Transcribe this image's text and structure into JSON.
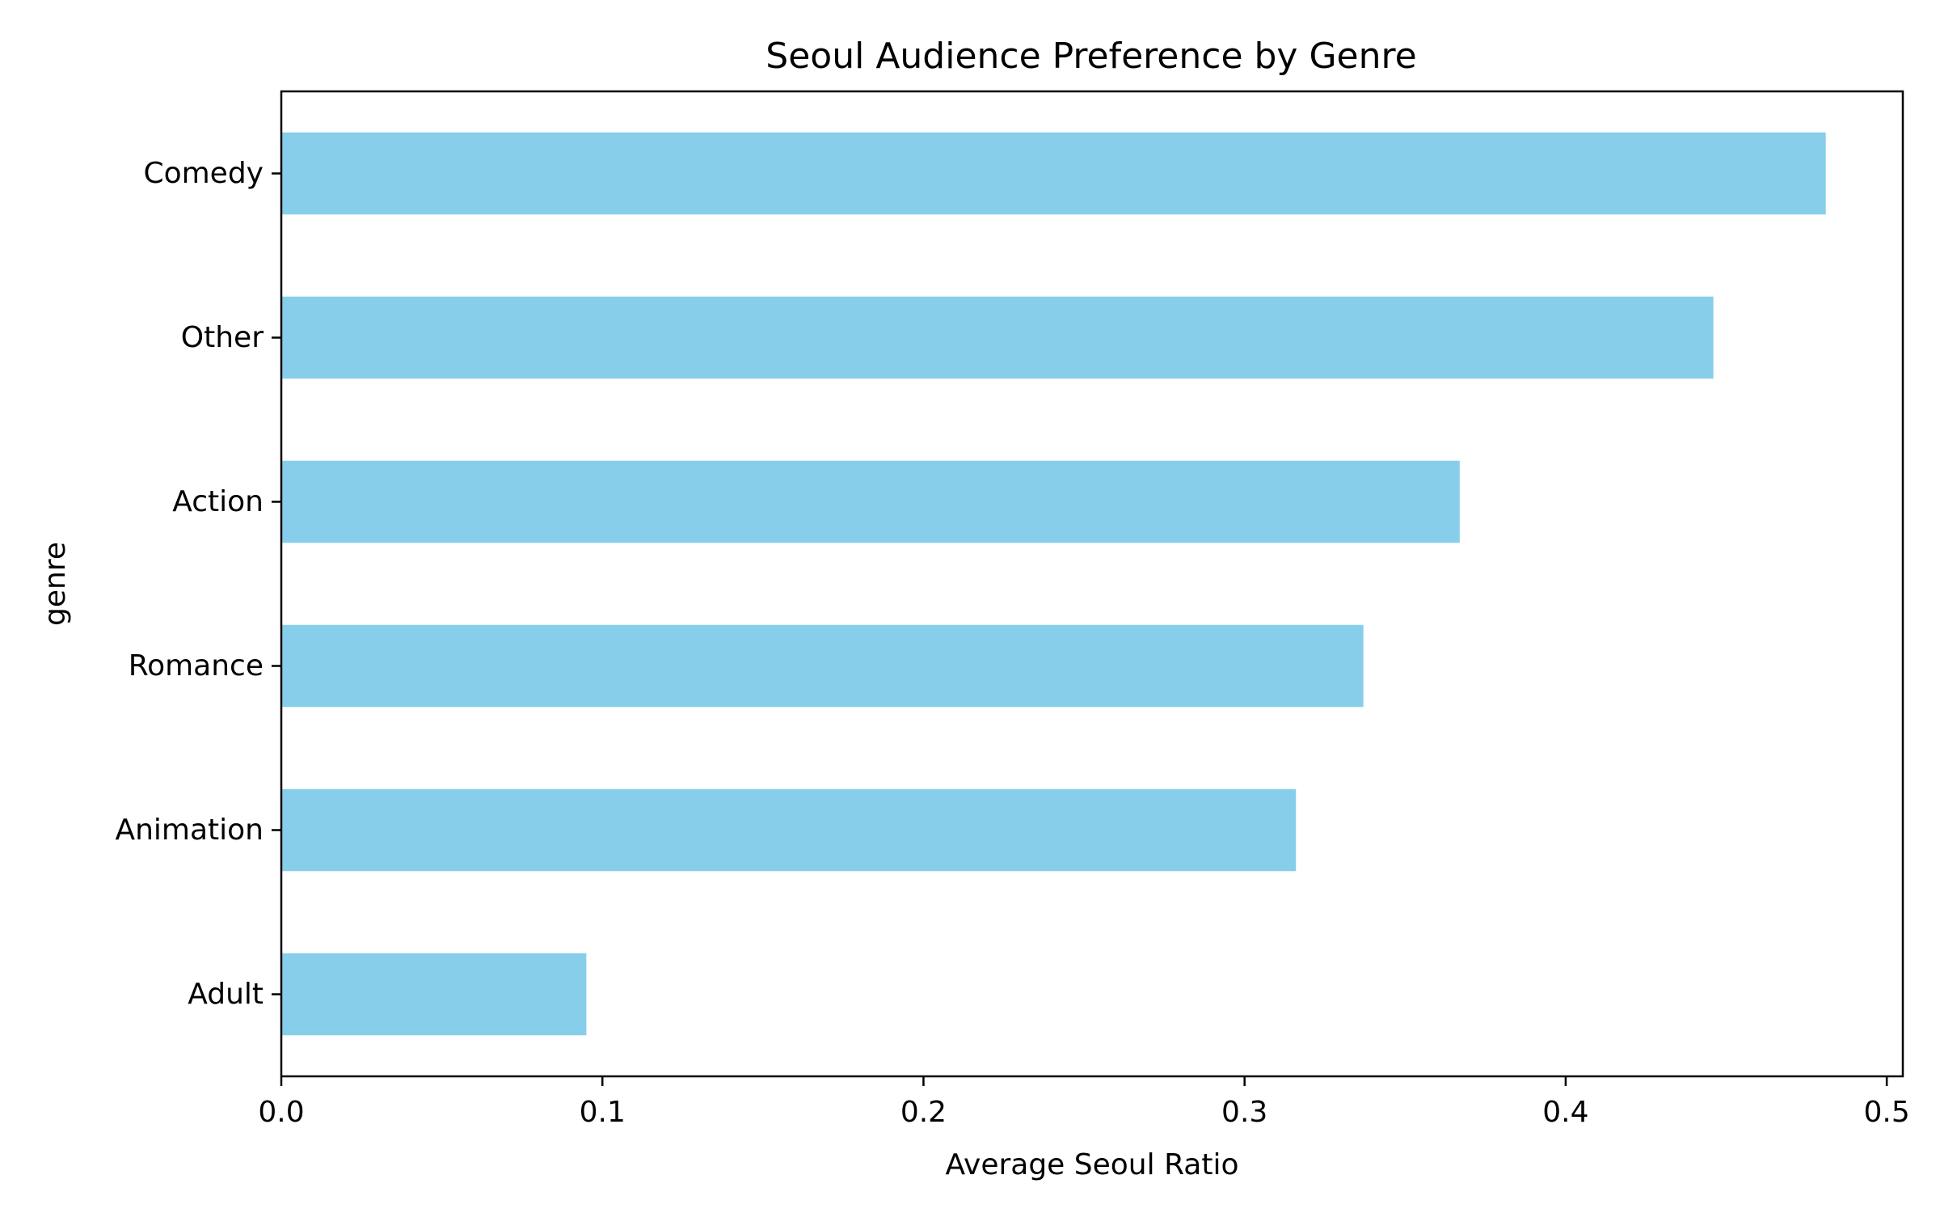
{
  "chart_data": {
    "type": "bar",
    "orientation": "horizontal",
    "title": "Seoul Audience Preference by Genre",
    "xlabel": "Average Seoul Ratio",
    "ylabel": "genre",
    "categories": [
      "Adult",
      "Animation",
      "Romance",
      "Action",
      "Other",
      "Comedy"
    ],
    "values": [
      0.095,
      0.316,
      0.337,
      0.367,
      0.446,
      0.481
    ],
    "xlim": [
      0.0,
      0.505
    ],
    "xticks": [
      0.0,
      0.1,
      0.2,
      0.3,
      0.4,
      0.5
    ],
    "xtick_labels": [
      "0.0",
      "0.1",
      "0.2",
      "0.3",
      "0.4",
      "0.5"
    ],
    "bar_color": "#87CEEB",
    "grid": false,
    "legend": false
  }
}
